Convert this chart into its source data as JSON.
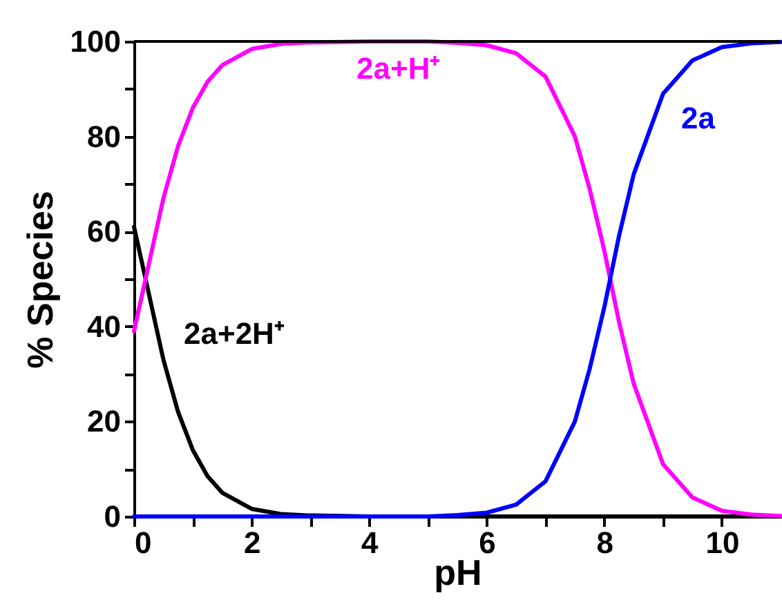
{
  "chart_data": {
    "type": "line",
    "xlabel": "pH",
    "ylabel": "% Species",
    "x": [
      0,
      0.25,
      0.5,
      0.75,
      1,
      1.25,
      1.5,
      2,
      2.5,
      3,
      4,
      5,
      5.5,
      6,
      6.5,
      7,
      7.5,
      7.75,
      8,
      8.25,
      8.5,
      9,
      9.5,
      10,
      10.5,
      11
    ],
    "series": [
      {
        "name": "2a+2H⁺",
        "color": "#000000",
        "values": [
          61,
          47,
          33,
          22,
          14,
          8.5,
          5,
          1.6,
          0.5,
          0.2,
          0,
          0,
          0,
          0,
          0,
          0,
          0,
          0,
          0,
          0,
          0,
          0,
          0,
          0,
          0,
          0
        ]
      },
      {
        "name": "2a+H⁺",
        "color": "#ff00ff",
        "values": [
          39,
          53,
          67,
          78,
          86,
          91.5,
          95,
          98.4,
          99.5,
          99.8,
          100,
          100,
          99.7,
          99.2,
          97.5,
          92.6,
          80,
          69,
          56,
          41,
          28,
          11,
          4,
          1.2,
          0.4,
          0.1
        ]
      },
      {
        "name": "2a",
        "color": "#0000ff",
        "values": [
          0,
          0,
          0,
          0,
          0,
          0,
          0,
          0,
          0,
          0,
          0,
          0,
          0.3,
          0.8,
          2.5,
          7.4,
          20,
          31,
          44,
          59,
          72,
          89,
          96,
          98.8,
          99.6,
          99.9
        ]
      }
    ],
    "xlim": [
      0,
      11
    ],
    "ylim": [
      0,
      100
    ],
    "xticks": [
      0,
      {
        "value": 1,
        "label": null
      },
      2,
      {
        "value": 3,
        "label": null
      },
      4,
      {
        "value": 5,
        "label": null
      },
      6,
      {
        "value": 7,
        "label": null
      },
      8,
      {
        "value": 9,
        "label": null
      },
      10
    ],
    "yticks": [
      0,
      {
        "value": 10,
        "label": null
      },
      20,
      {
        "value": 30,
        "label": null
      },
      40,
      {
        "value": 50,
        "label": null
      },
      60,
      {
        "value": 70,
        "label": null
      },
      80,
      {
        "value": 90,
        "label": null
      },
      100
    ],
    "grid": false,
    "legend": false,
    "marker": "none",
    "line_style": "solid"
  }
}
